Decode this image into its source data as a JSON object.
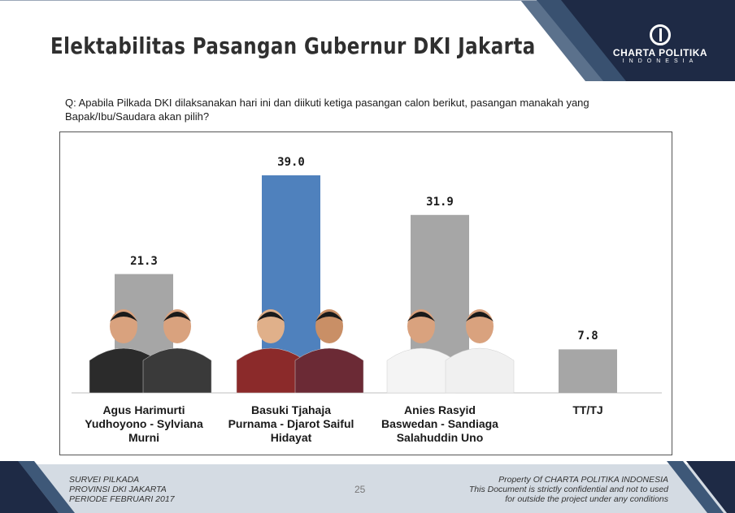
{
  "header": {
    "title": "Elektabilitas Pasangan Gubernur DKI Jakarta",
    "logo": {
      "name": "CHARTA POLITIKA",
      "sub": "INDONESIA"
    }
  },
  "question": "Q: Apabila Pilkada DKI dilaksanakan hari ini dan diikuti ketiga pasangan calon berikut, pasangan manakah yang Bapak/Ibu/Saudara akan pilih?",
  "chart_data": {
    "type": "bar",
    "categories": [
      "Agus Harimurti Yudhoyono -  Sylviana Murni",
      "Basuki Tjahaja Purnama -  Djarot Saiful Hidayat",
      "Anies Rasyid Baswedan -  Sandiaga Salahuddin Uno",
      "TT/TJ"
    ],
    "values": [
      21.3,
      39.0,
      31.9,
      7.8
    ],
    "value_labels": [
      "21.3",
      "39.0",
      "31.9",
      "7.8"
    ],
    "colors": [
      "#a6a6a6",
      "#4f81bd",
      "#a6a6a6",
      "#a6a6a6"
    ],
    "ylim": [
      0,
      45
    ],
    "grid": false,
    "legend": "none",
    "title": "",
    "xlabel": "",
    "ylabel": ""
  },
  "footer": {
    "left_lines": [
      "SURVEI PILKADA",
      "PROVINSI DKI JAKARTA",
      "PERIODE FEBRUARI 2017"
    ],
    "page": "25",
    "right_lines": [
      "Property Of CHARTA POLITIKA INDONESIA",
      "This Document is strictly confidential and not to used",
      "for outside the project under any conditions"
    ]
  },
  "colors": {
    "navy": "#1e2a45",
    "steel": "#3e5878",
    "footer_bg": "#d4dbe3",
    "accent_blue": "#4f81bd"
  }
}
